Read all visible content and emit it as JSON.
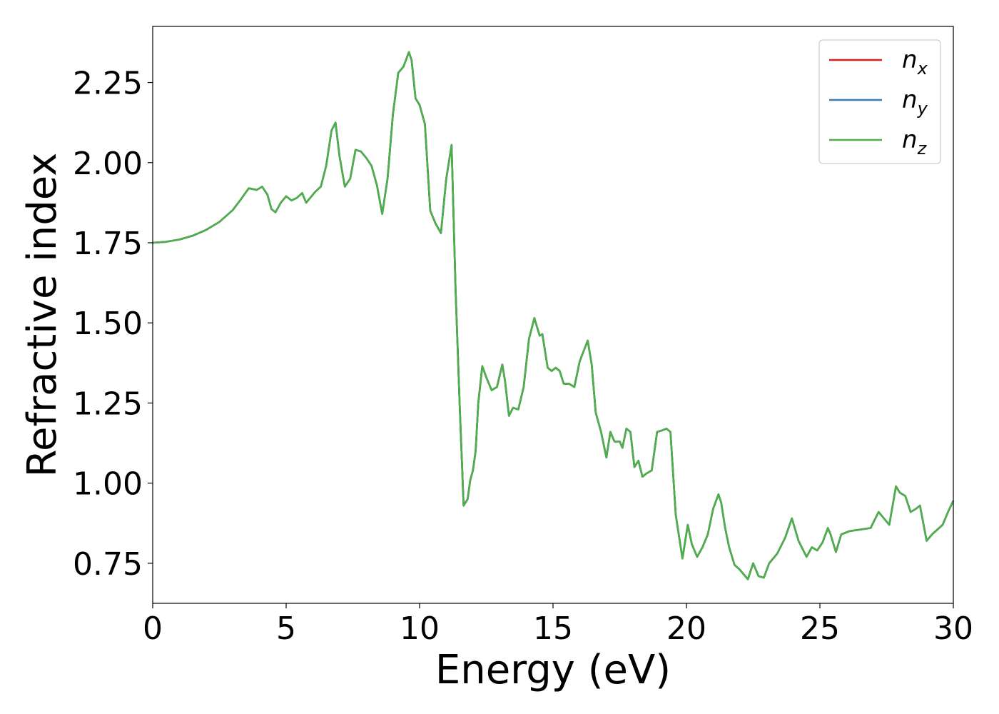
{
  "chart_data": {
    "type": "line",
    "title": "",
    "xlabel": "Energy (eV)",
    "ylabel": "Refractive index",
    "xlim": [
      0,
      30
    ],
    "ylim": [
      0.625,
      2.425
    ],
    "xticks": [
      0,
      5,
      10,
      15,
      20,
      25,
      30
    ],
    "xtick_labels": [
      "0",
      "5",
      "10",
      "15",
      "20",
      "25",
      "30"
    ],
    "yticks": [
      0.75,
      1.0,
      1.25,
      1.5,
      1.75,
      2.0,
      2.25
    ],
    "ytick_labels": [
      "0.75",
      "1.00",
      "1.25",
      "1.50",
      "1.75",
      "2.00",
      "2.25"
    ],
    "grid": false,
    "legend_position": "top-right",
    "x": [
      0,
      0.5,
      1,
      1.5,
      2,
      2.5,
      3,
      3.3,
      3.6,
      3.9,
      4.1,
      4.3,
      4.45,
      4.6,
      4.8,
      5.0,
      5.2,
      5.4,
      5.6,
      5.75,
      5.9,
      6.1,
      6.3,
      6.5,
      6.7,
      6.85,
      7.0,
      7.2,
      7.4,
      7.6,
      7.8,
      8.0,
      8.2,
      8.4,
      8.6,
      8.8,
      9.0,
      9.2,
      9.4,
      9.6,
      9.7,
      9.85,
      10.0,
      10.2,
      10.4,
      10.6,
      10.8,
      11.0,
      11.2,
      11.35,
      11.5,
      11.65,
      11.8,
      11.9,
      12.0,
      12.1,
      12.2,
      12.35,
      12.5,
      12.7,
      12.9,
      13.1,
      13.2,
      13.35,
      13.5,
      13.7,
      13.9,
      14.1,
      14.3,
      14.5,
      14.6,
      14.8,
      14.95,
      15.1,
      15.25,
      15.4,
      15.6,
      15.8,
      16.0,
      16.3,
      16.45,
      16.6,
      16.8,
      17.0,
      17.15,
      17.3,
      17.5,
      17.6,
      17.75,
      17.9,
      18.05,
      18.2,
      18.35,
      18.5,
      18.7,
      18.9,
      19.1,
      19.25,
      19.4,
      19.6,
      19.85,
      20.05,
      20.2,
      20.4,
      20.6,
      20.8,
      21.0,
      21.2,
      21.3,
      21.45,
      21.6,
      21.8,
      22.0,
      22.3,
      22.5,
      22.7,
      22.9,
      23.1,
      23.4,
      23.7,
      23.95,
      24.2,
      24.5,
      24.7,
      24.9,
      25.1,
      25.3,
      25.4,
      25.6,
      25.8,
      26.1,
      26.5,
      26.9,
      27.2,
      27.4,
      27.6,
      27.85,
      28.0,
      28.2,
      28.4,
      28.6,
      28.75,
      29.0,
      29.2,
      29.4,
      29.6,
      29.8,
      30.0
    ],
    "series": [
      {
        "name": "n_x",
        "legend_label": "n",
        "legend_sub": "x",
        "color": "#e31a1c",
        "y": [
          1.75,
          1.753,
          1.76,
          1.772,
          1.79,
          1.815,
          1.852,
          1.885,
          1.92,
          1.915,
          1.925,
          1.9,
          1.855,
          1.845,
          1.875,
          1.895,
          1.882,
          1.89,
          1.905,
          1.875,
          1.89,
          1.91,
          1.925,
          1.99,
          2.1,
          2.125,
          2.02,
          1.925,
          1.95,
          2.04,
          2.035,
          2.015,
          1.99,
          1.93,
          1.84,
          1.95,
          2.15,
          2.28,
          2.3,
          2.345,
          2.32,
          2.2,
          2.18,
          2.12,
          1.85,
          1.81,
          1.78,
          1.95,
          2.055,
          1.6,
          1.25,
          0.93,
          0.95,
          1.01,
          1.04,
          1.1,
          1.25,
          1.365,
          1.33,
          1.29,
          1.3,
          1.37,
          1.32,
          1.21,
          1.235,
          1.23,
          1.3,
          1.45,
          1.515,
          1.46,
          1.465,
          1.36,
          1.35,
          1.36,
          1.35,
          1.31,
          1.31,
          1.3,
          1.38,
          1.445,
          1.37,
          1.22,
          1.16,
          1.08,
          1.16,
          1.13,
          1.13,
          1.11,
          1.17,
          1.16,
          1.05,
          1.07,
          1.02,
          1.03,
          1.04,
          1.16,
          1.165,
          1.17,
          1.16,
          0.9,
          0.765,
          0.87,
          0.81,
          0.77,
          0.8,
          0.84,
          0.92,
          0.965,
          0.94,
          0.86,
          0.8,
          0.745,
          0.73,
          0.7,
          0.75,
          0.71,
          0.705,
          0.75,
          0.78,
          0.83,
          0.89,
          0.82,
          0.77,
          0.8,
          0.79,
          0.815,
          0.86,
          0.84,
          0.785,
          0.84,
          0.85,
          0.855,
          0.86,
          0.91,
          0.89,
          0.87,
          0.99,
          0.97,
          0.96,
          0.91,
          0.92,
          0.93,
          0.82,
          0.84,
          0.855,
          0.87,
          0.91,
          0.945
        ]
      },
      {
        "name": "n_y",
        "legend_label": "n",
        "legend_sub": "y",
        "color": "#377eb8",
        "y": [
          1.75,
          1.753,
          1.76,
          1.772,
          1.79,
          1.815,
          1.852,
          1.885,
          1.92,
          1.915,
          1.925,
          1.9,
          1.855,
          1.845,
          1.875,
          1.895,
          1.882,
          1.89,
          1.905,
          1.875,
          1.89,
          1.91,
          1.925,
          1.99,
          2.1,
          2.125,
          2.02,
          1.925,
          1.95,
          2.04,
          2.035,
          2.015,
          1.99,
          1.93,
          1.84,
          1.95,
          2.15,
          2.28,
          2.3,
          2.345,
          2.32,
          2.2,
          2.18,
          2.12,
          1.85,
          1.81,
          1.78,
          1.95,
          2.055,
          1.6,
          1.25,
          0.93,
          0.95,
          1.01,
          1.04,
          1.1,
          1.25,
          1.365,
          1.33,
          1.29,
          1.3,
          1.37,
          1.32,
          1.21,
          1.235,
          1.23,
          1.3,
          1.45,
          1.515,
          1.46,
          1.465,
          1.36,
          1.35,
          1.36,
          1.35,
          1.31,
          1.31,
          1.3,
          1.38,
          1.445,
          1.37,
          1.22,
          1.16,
          1.08,
          1.16,
          1.13,
          1.13,
          1.11,
          1.17,
          1.16,
          1.05,
          1.07,
          1.02,
          1.03,
          1.04,
          1.16,
          1.165,
          1.17,
          1.16,
          0.9,
          0.765,
          0.87,
          0.81,
          0.77,
          0.8,
          0.84,
          0.92,
          0.965,
          0.94,
          0.86,
          0.8,
          0.745,
          0.73,
          0.7,
          0.75,
          0.71,
          0.705,
          0.75,
          0.78,
          0.83,
          0.89,
          0.82,
          0.77,
          0.8,
          0.79,
          0.815,
          0.86,
          0.84,
          0.785,
          0.84,
          0.85,
          0.855,
          0.86,
          0.91,
          0.89,
          0.87,
          0.99,
          0.97,
          0.96,
          0.91,
          0.92,
          0.93,
          0.82,
          0.84,
          0.855,
          0.87,
          0.91,
          0.945
        ]
      },
      {
        "name": "n_z",
        "legend_label": "n",
        "legend_sub": "z",
        "color": "#4daf4a",
        "y": [
          1.75,
          1.753,
          1.76,
          1.772,
          1.79,
          1.815,
          1.852,
          1.885,
          1.92,
          1.915,
          1.925,
          1.9,
          1.855,
          1.845,
          1.875,
          1.895,
          1.882,
          1.89,
          1.905,
          1.875,
          1.89,
          1.91,
          1.925,
          1.99,
          2.1,
          2.125,
          2.02,
          1.925,
          1.95,
          2.04,
          2.035,
          2.015,
          1.99,
          1.93,
          1.84,
          1.95,
          2.15,
          2.28,
          2.3,
          2.345,
          2.32,
          2.2,
          2.18,
          2.12,
          1.85,
          1.81,
          1.78,
          1.95,
          2.055,
          1.6,
          1.25,
          0.93,
          0.95,
          1.01,
          1.04,
          1.1,
          1.25,
          1.365,
          1.33,
          1.29,
          1.3,
          1.37,
          1.32,
          1.21,
          1.235,
          1.23,
          1.3,
          1.45,
          1.515,
          1.46,
          1.465,
          1.36,
          1.35,
          1.36,
          1.35,
          1.31,
          1.31,
          1.3,
          1.38,
          1.445,
          1.37,
          1.22,
          1.16,
          1.08,
          1.16,
          1.13,
          1.13,
          1.11,
          1.17,
          1.16,
          1.05,
          1.07,
          1.02,
          1.03,
          1.04,
          1.16,
          1.165,
          1.17,
          1.16,
          0.9,
          0.765,
          0.87,
          0.81,
          0.77,
          0.8,
          0.84,
          0.92,
          0.965,
          0.94,
          0.86,
          0.8,
          0.745,
          0.73,
          0.7,
          0.75,
          0.71,
          0.705,
          0.75,
          0.78,
          0.83,
          0.89,
          0.82,
          0.77,
          0.8,
          0.79,
          0.815,
          0.86,
          0.84,
          0.785,
          0.84,
          0.85,
          0.855,
          0.86,
          0.91,
          0.89,
          0.87,
          0.99,
          0.97,
          0.96,
          0.91,
          0.92,
          0.93,
          0.82,
          0.84,
          0.855,
          0.87,
          0.91,
          0.945
        ]
      }
    ]
  }
}
